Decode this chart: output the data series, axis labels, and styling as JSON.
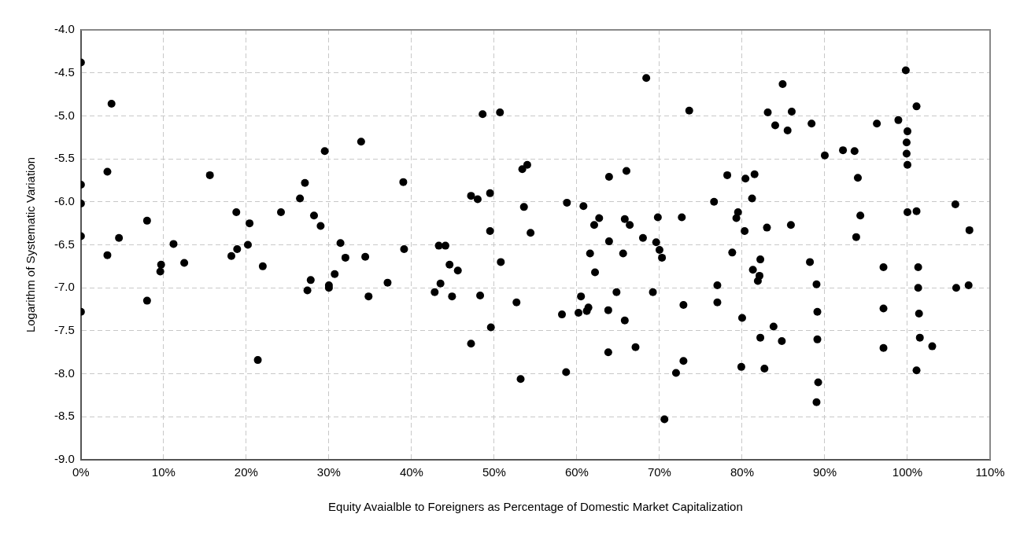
{
  "chart_data": {
    "type": "scatter",
    "xlabel": "Equity Avaialble to Foreigners as Percentage of Domestic Market Capitalization",
    "ylabel": "Logarithm of Systematic Variation",
    "xlim": [
      0,
      110
    ],
    "xticks": [
      {
        "value": 0,
        "label": "0%"
      },
      {
        "value": 10,
        "label": "10%"
      },
      {
        "value": 20,
        "label": "20%"
      },
      {
        "value": 30,
        "label": "30%"
      },
      {
        "value": 40,
        "label": "40%"
      },
      {
        "value": 50,
        "label": "50%"
      },
      {
        "value": 60,
        "label": "60%"
      },
      {
        "value": 70,
        "label": "70%"
      },
      {
        "value": 80,
        "label": "80%"
      },
      {
        "value": 90,
        "label": "90%"
      },
      {
        "value": 100,
        "label": "100%"
      },
      {
        "value": 110,
        "label": "110%"
      }
    ],
    "ylim": [
      -9,
      -4
    ],
    "yticks": [
      {
        "value": -9,
        "label": "-9.0"
      },
      {
        "value": -8.5,
        "label": "-8.5"
      },
      {
        "value": -8,
        "label": "-8.0"
      },
      {
        "value": -7.5,
        "label": "-7.5"
      },
      {
        "value": -7,
        "label": "-7.0"
      },
      {
        "value": -6.5,
        "label": "-6.5"
      },
      {
        "value": -6,
        "label": "-6.0"
      },
      {
        "value": -5.5,
        "label": "-5.5"
      },
      {
        "value": -5,
        "label": "-5.0"
      },
      {
        "value": -4.5,
        "label": "-4.5"
      },
      {
        "value": -4,
        "label": "-4.0"
      }
    ],
    "grid": true,
    "legend": false,
    "marker": "circle",
    "series": [
      {
        "color": "#000000",
        "x": [
          0,
          0,
          0,
          0,
          0,
          3.2,
          3.2,
          3.7,
          4.6,
          8.0,
          8.0,
          9.6,
          9.7,
          11.2,
          12.5,
          15.6,
          18.2,
          18.8,
          18.9,
          20.2,
          20.4,
          21.4,
          22.0,
          24.2,
          26.5,
          27.1,
          27.4,
          27.8,
          28.2,
          29.0,
          29.5,
          30.0,
          30.0,
          30.7,
          31.4,
          32.0,
          33.9,
          34.4,
          34.8,
          37.1,
          39.0,
          39.1,
          42.8,
          43.3,
          43.5,
          44.1,
          44.6,
          44.9,
          45.6,
          47.2,
          47.2,
          48.0,
          48.3,
          48.6,
          49.5,
          49.5,
          49.6,
          50.7,
          50.8,
          52.7,
          53.2,
          53.4,
          53.6,
          54.0,
          54.4,
          58.2,
          58.7,
          58.8,
          60.2,
          60.5,
          60.8,
          61.2,
          61.4,
          61.6,
          62.1,
          62.2,
          62.7,
          63.8,
          63.8,
          63.9,
          63.9,
          64.8,
          65.6,
          65.8,
          65.8,
          66.0,
          66.4,
          67.1,
          68.0,
          68.4,
          69.2,
          69.6,
          69.8,
          70.0,
          70.3,
          70.6,
          72.0,
          72.7,
          72.9,
          72.9,
          73.6,
          76.6,
          77.0,
          77.0,
          78.2,
          78.8,
          79.3,
          79.5,
          79.9,
          80.0,
          80.4,
          80.3,
          81.2,
          81.3,
          81.5,
          81.9,
          82.1,
          82.2,
          82.2,
          82.7,
          83.0,
          83.1,
          83.8,
          84.0,
          84.9,
          84.8,
          85.5,
          85.9,
          86.0,
          88.2,
          88.4,
          89.0,
          89.1,
          89.1,
          89.2,
          89.0,
          90.0,
          92.2,
          93.6,
          93.8,
          94.0,
          94.3,
          96.3,
          97.1,
          97.1,
          97.1,
          98.9,
          99.8,
          100.0,
          99.9,
          99.9,
          100.0,
          100.0,
          101.1,
          101.1,
          101.1,
          101.3,
          101.3,
          101.4,
          101.5,
          103.0,
          105.8,
          105.9,
          107.5,
          107.4
        ],
        "values": [
          -4.38,
          -5.8,
          -6.02,
          -6.4,
          -7.28,
          -5.65,
          -6.62,
          -4.86,
          -6.42,
          -6.22,
          -7.15,
          -6.81,
          -6.73,
          -6.49,
          -6.71,
          -5.69,
          -6.63,
          -6.12,
          -6.55,
          -6.5,
          -6.25,
          -7.84,
          -6.75,
          -6.12,
          -5.96,
          -5.78,
          -7.03,
          -6.91,
          -6.16,
          -6.28,
          -5.41,
          -6.97,
          -7.0,
          -6.84,
          -6.48,
          -6.65,
          -5.3,
          -6.64,
          -7.1,
          -6.94,
          -5.77,
          -6.55,
          -7.05,
          -6.51,
          -6.95,
          -6.51,
          -6.73,
          -7.1,
          -6.8,
          -5.93,
          -7.65,
          -5.97,
          -7.09,
          -4.98,
          -6.34,
          -5.9,
          -7.46,
          -4.96,
          -6.7,
          -7.17,
          -8.06,
          -5.62,
          -6.06,
          -5.57,
          -6.36,
          -7.31,
          -7.98,
          -6.01,
          -7.29,
          -7.1,
          -6.05,
          -7.27,
          -7.23,
          -6.6,
          -6.27,
          -6.82,
          -6.19,
          -7.26,
          -7.75,
          -5.71,
          -6.46,
          -7.05,
          -6.6,
          -7.38,
          -6.2,
          -5.64,
          -6.27,
          -7.69,
          -6.42,
          -4.56,
          -7.05,
          -6.47,
          -6.18,
          -6.56,
          -6.65,
          -8.53,
          -7.99,
          -6.18,
          -7.2,
          -7.85,
          -4.94,
          -6.0,
          -6.97,
          -7.17,
          -5.69,
          -6.59,
          -6.19,
          -6.12,
          -7.92,
          -7.35,
          -5.73,
          -6.34,
          -5.96,
          -6.79,
          -5.68,
          -6.92,
          -6.86,
          -6.67,
          -7.58,
          -7.94,
          -6.3,
          -4.96,
          -7.45,
          -5.11,
          -4.63,
          -7.62,
          -5.17,
          -6.27,
          -4.95,
          -6.7,
          -5.09,
          -6.96,
          -7.28,
          -7.6,
          -8.1,
          -8.33,
          -5.46,
          -5.4,
          -5.41,
          -6.41,
          -5.72,
          -6.16,
          -5.09,
          -6.76,
          -7.24,
          -7.7,
          -5.05,
          -4.47,
          -5.18,
          -5.31,
          -5.44,
          -5.57,
          -6.12,
          -4.89,
          -6.11,
          -7.96,
          -6.76,
          -7.0,
          -7.3,
          -7.58,
          -7.68,
          -6.03,
          -7.0,
          -6.33,
          -6.97
        ]
      }
    ]
  }
}
